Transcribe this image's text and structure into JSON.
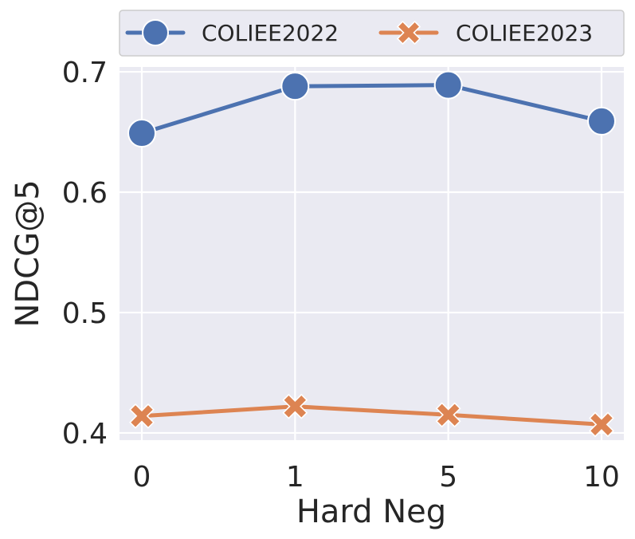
{
  "chart_data": {
    "type": "line",
    "categories": [
      "0",
      "1",
      "5",
      "10"
    ],
    "xlabel": "Hard Neg",
    "ylabel": "NDCG@5",
    "ylim": [
      0.394,
      0.704
    ],
    "yticks": [
      0.4,
      0.5,
      0.6,
      0.7
    ],
    "ytick_labels": [
      "0.4",
      "0.5",
      "0.6",
      "0.7"
    ],
    "grid": true,
    "legend_position": "top",
    "series": [
      {
        "name": "COLIEE2022",
        "values": [
          0.649,
          0.688,
          0.689,
          0.659
        ],
        "color": "#4c72b0",
        "marker": "circle"
      },
      {
        "name": "COLIEE2023",
        "values": [
          0.414,
          0.422,
          0.415,
          0.407
        ],
        "color": "#dd8452",
        "marker": "x"
      }
    ]
  }
}
